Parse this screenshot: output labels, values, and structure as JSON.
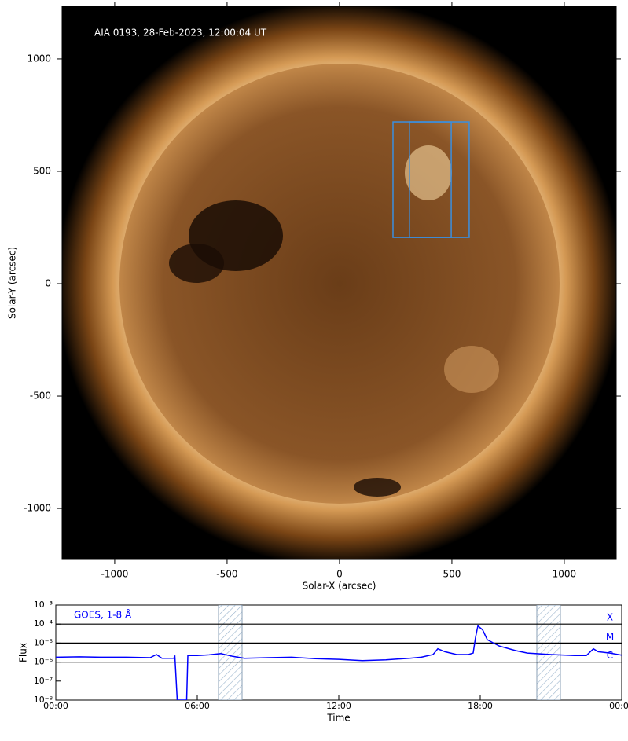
{
  "chart_data": [
    {
      "type": "image",
      "annotation": "AIA 0193, 28-Feb-2023, 12:00:04 UT",
      "xlabel": "Solar-X (arcsec)",
      "ylabel": "Solar-Y (arcsec)",
      "xlim": [
        -1234,
        1231
      ],
      "ylim": [
        -1227,
        1234
      ],
      "xticks": [
        -1000,
        -500,
        0,
        500,
        1000
      ],
      "yticks": [
        -1000,
        -500,
        0,
        500,
        1000
      ],
      "box_color": "#3a8fe0",
      "boxes": [
        {
          "x": [
            238,
            577
          ],
          "y": [
            206,
            720
          ]
        },
        {
          "x": [
            311,
            497
          ],
          "y": [
            206,
            720
          ]
        }
      ]
    },
    {
      "type": "line",
      "xlabel": "Time",
      "ylabel": "Flux",
      "log_y": true,
      "xlim": [
        0,
        24
      ],
      "ylim": [
        1e-08,
        0.001
      ],
      "xticks": [
        {
          "value": 0,
          "label": "00:00"
        },
        {
          "value": 6,
          "label": "06:00"
        },
        {
          "value": 12,
          "label": "12:00"
        },
        {
          "value": 18,
          "label": "18:00"
        },
        {
          "value": 24,
          "label": "00:00"
        }
      ],
      "yticks": [
        {
          "value": 1e-08,
          "label": "10⁻⁸"
        },
        {
          "value": 1e-07,
          "label": "10⁻⁷"
        },
        {
          "value": 1e-06,
          "label": "10⁻⁶"
        },
        {
          "value": 1e-05,
          "label": "10⁻⁵"
        },
        {
          "value": 0.0001,
          "label": "10⁻⁴"
        },
        {
          "value": 0.001,
          "label": "10⁻³"
        }
      ],
      "flare_classes": [
        {
          "value": 0.0001,
          "label": "X"
        },
        {
          "value": 1e-05,
          "label": "M"
        },
        {
          "value": 1e-06,
          "label": "C"
        }
      ],
      "shaded_spans": [
        [
          6.9,
          7.9
        ],
        [
          20.4,
          21.4
        ]
      ],
      "x": [
        0,
        1,
        2,
        3,
        4,
        4.27,
        4.5,
        5.0,
        5.05,
        5.15,
        5.55,
        5.6,
        6,
        6.5,
        7,
        7.5,
        8,
        9,
        10,
        11,
        12,
        13,
        14,
        15,
        15.5,
        16,
        16.2,
        16.5,
        17,
        17.5,
        17.7,
        17.8,
        17.9,
        18.1,
        18.3,
        18.8,
        19.5,
        20,
        21,
        22,
        22.5,
        22.8,
        23,
        23.5,
        24
      ],
      "series": [
        {
          "name": "GOES, 1-8 Å",
          "color": "#0000ff",
          "values": [
            1.8e-06,
            1.9e-06,
            1.8e-06,
            1.8e-06,
            1.7e-06,
            2.5e-06,
            1.6e-06,
            1.6e-06,
            2e-06,
            1e-08,
            1e-08,
            2.2e-06,
            2.2e-06,
            2.4e-06,
            2.8e-06,
            2e-06,
            1.6e-06,
            1.7e-06,
            1.8e-06,
            1.5e-06,
            1.4e-06,
            1.2e-06,
            1.3e-06,
            1.6e-06,
            1.8e-06,
            2.5e-06,
            5e-06,
            3.5e-06,
            2.5e-06,
            2.5e-06,
            3e-06,
            2e-05,
            8e-05,
            5e-05,
            1.5e-05,
            7e-06,
            4e-06,
            3e-06,
            2.5e-06,
            2.2e-06,
            2.2e-06,
            5e-06,
            3.5e-06,
            3e-06,
            2.3e-06
          ]
        }
      ]
    }
  ]
}
